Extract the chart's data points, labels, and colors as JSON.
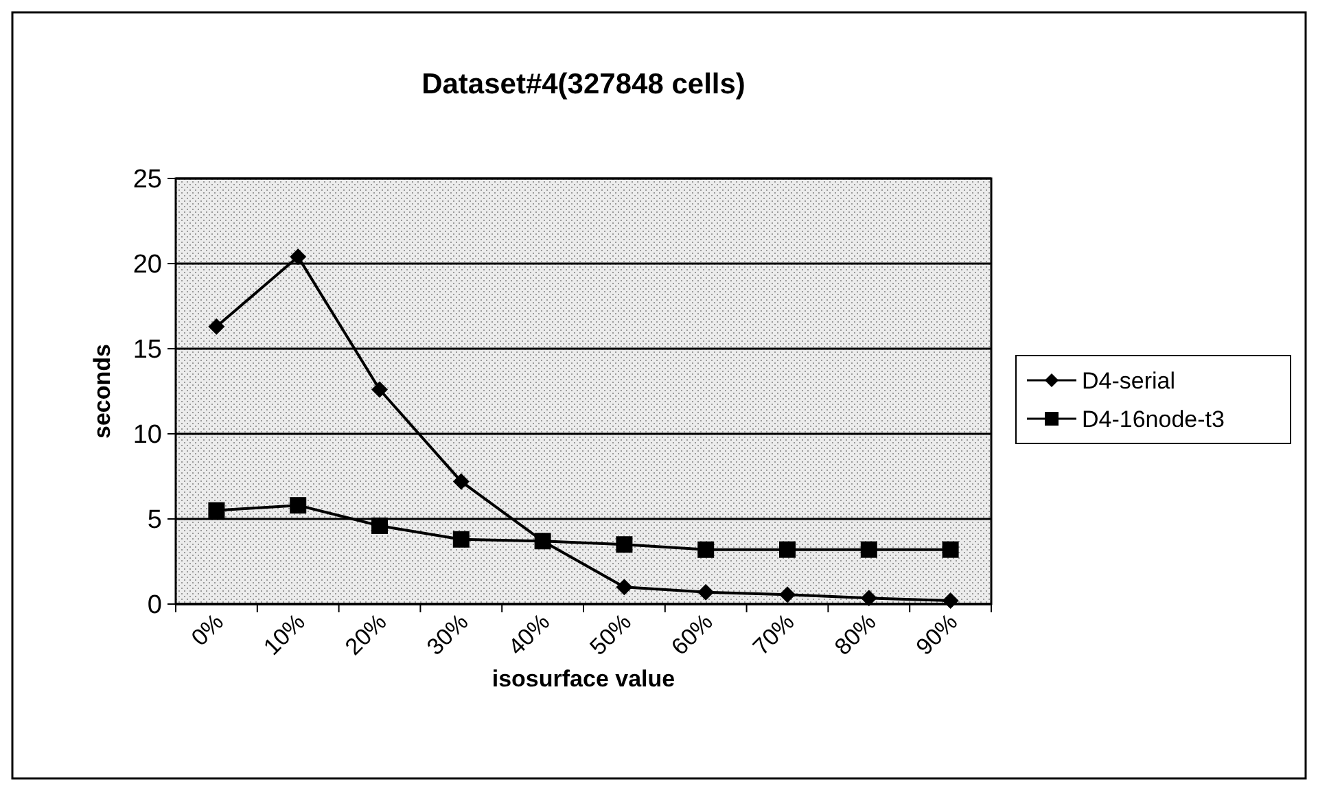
{
  "chart_data": {
    "type": "line",
    "title": "Dataset#4(327848 cells)",
    "xlabel": "isosurface value",
    "ylabel": "seconds",
    "categories": [
      "0%",
      "10%",
      "20%",
      "30%",
      "40%",
      "50%",
      "60%",
      "70%",
      "80%",
      "90%"
    ],
    "series": [
      {
        "name": "D4-serial",
        "color": "#000000",
        "marker": "diamond",
        "values": [
          16.3,
          20.4,
          12.6,
          7.2,
          3.7,
          1.0,
          0.7,
          0.55,
          0.35,
          0.2
        ]
      },
      {
        "name": "D4-16node-t3",
        "color": "#000000",
        "marker": "square",
        "values": [
          5.5,
          5.8,
          4.6,
          3.8,
          3.7,
          3.5,
          3.2,
          3.2,
          3.2,
          3.2
        ]
      }
    ],
    "ylim": [
      0,
      25
    ],
    "yticks": [
      0,
      5,
      10,
      15,
      20,
      25
    ],
    "grid": "y",
    "legend": "right",
    "line_style": "solid"
  }
}
